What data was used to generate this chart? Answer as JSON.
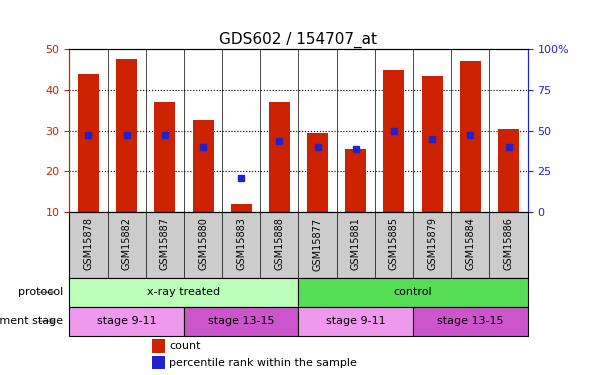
{
  "title": "GDS602 / 154707_at",
  "samples": [
    "GSM15878",
    "GSM15882",
    "GSM15887",
    "GSM15880",
    "GSM15883",
    "GSM15888",
    "GSM15877",
    "GSM15881",
    "GSM15885",
    "GSM15879",
    "GSM15884",
    "GSM15886"
  ],
  "bar_values": [
    44,
    47.5,
    37,
    32.5,
    12,
    37,
    29.5,
    25.5,
    45,
    43.5,
    47,
    30.5
  ],
  "percentile_values": [
    29,
    29,
    29,
    26,
    18.5,
    27.5,
    26,
    25.5,
    30,
    28,
    29,
    26
  ],
  "bar_color": "#cc2200",
  "percentile_color": "#2222cc",
  "ylim_left": [
    10,
    50
  ],
  "ylim_right": [
    0,
    100
  ],
  "yticks_left": [
    10,
    20,
    30,
    40,
    50
  ],
  "yticks_right": [
    0,
    25,
    50,
    75,
    100
  ],
  "ytick_labels_right": [
    "0",
    "25",
    "50",
    "75",
    "100%"
  ],
  "protocol_groups": [
    {
      "label": "x-ray treated",
      "start": 0,
      "end": 6,
      "color": "#bbffbb"
    },
    {
      "label": "control",
      "start": 6,
      "end": 12,
      "color": "#55dd55"
    }
  ],
  "stage_groups": [
    {
      "label": "stage 9-11",
      "start": 0,
      "end": 3,
      "color": "#ee99ee"
    },
    {
      "label": "stage 13-15",
      "start": 3,
      "end": 6,
      "color": "#cc55cc"
    },
    {
      "label": "stage 9-11",
      "start": 6,
      "end": 9,
      "color": "#ee99ee"
    },
    {
      "label": "stage 13-15",
      "start": 9,
      "end": 12,
      "color": "#cc55cc"
    }
  ],
  "row_labels": [
    "protocol",
    "development stage"
  ],
  "legend_count_label": "count",
  "legend_percentile_label": "percentile rank within the sample",
  "bar_width": 0.55,
  "tick_label_color_left": "#cc2200",
  "tick_label_color_right": "#2222cc",
  "label_gray": "#cccccc",
  "bar_color_divider": "#000000"
}
